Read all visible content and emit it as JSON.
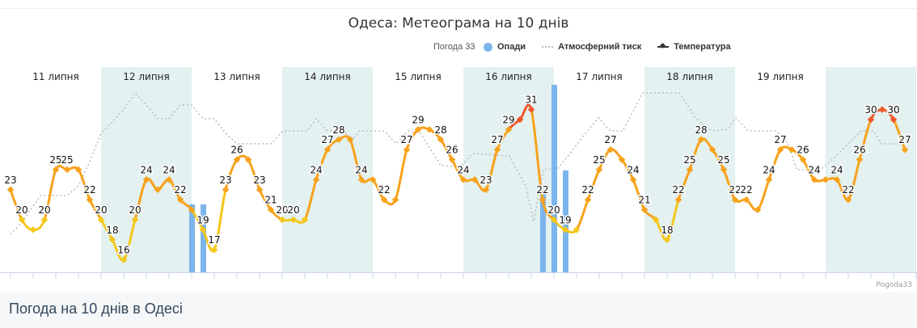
{
  "chart_data": {
    "type": "line",
    "title": "Одеса: Метеограма на 10 днів",
    "legend": {
      "source": "Погода 33",
      "items": [
        "Опади",
        "Атмосферний тиск",
        "Температура"
      ],
      "placement": "top-right"
    },
    "days": [
      "11 липня",
      "12 липня",
      "13 липня",
      "14 липня",
      "15 липня",
      "16 липня",
      "17 липня",
      "18 липня",
      "19 липня",
      ""
    ],
    "points_per_day": 8,
    "temperature": [
      23,
      20,
      19,
      20,
      25,
      25,
      25,
      22,
      20,
      18,
      16,
      20,
      24,
      23,
      24,
      22,
      21,
      19,
      17,
      23,
      26,
      26,
      23,
      21,
      20,
      20,
      20,
      24,
      27,
      28,
      28,
      24,
      24,
      22,
      22,
      27,
      29,
      29,
      28,
      26,
      24,
      24,
      23,
      27,
      29,
      30,
      31,
      22,
      20,
      19,
      19,
      22,
      25,
      27,
      26,
      24,
      21,
      20,
      18,
      22,
      25,
      28,
      27,
      25,
      22,
      22,
      21,
      24,
      27,
      27,
      26,
      24,
      24,
      24,
      22,
      26,
      30,
      31,
      30,
      27
    ],
    "grid": false,
    "colors": {
      "temp": "#f7a21b",
      "temp_cool": "#f5c71a",
      "temp_hot": "#f0582a",
      "precip": "#7cb5ec",
      "pressure": "#bbbbbb",
      "band": "#e3f1f0"
    }
  },
  "credit": "Pogoda33",
  "footer": {
    "heading": "Погода на 10 днів в Одесі"
  }
}
